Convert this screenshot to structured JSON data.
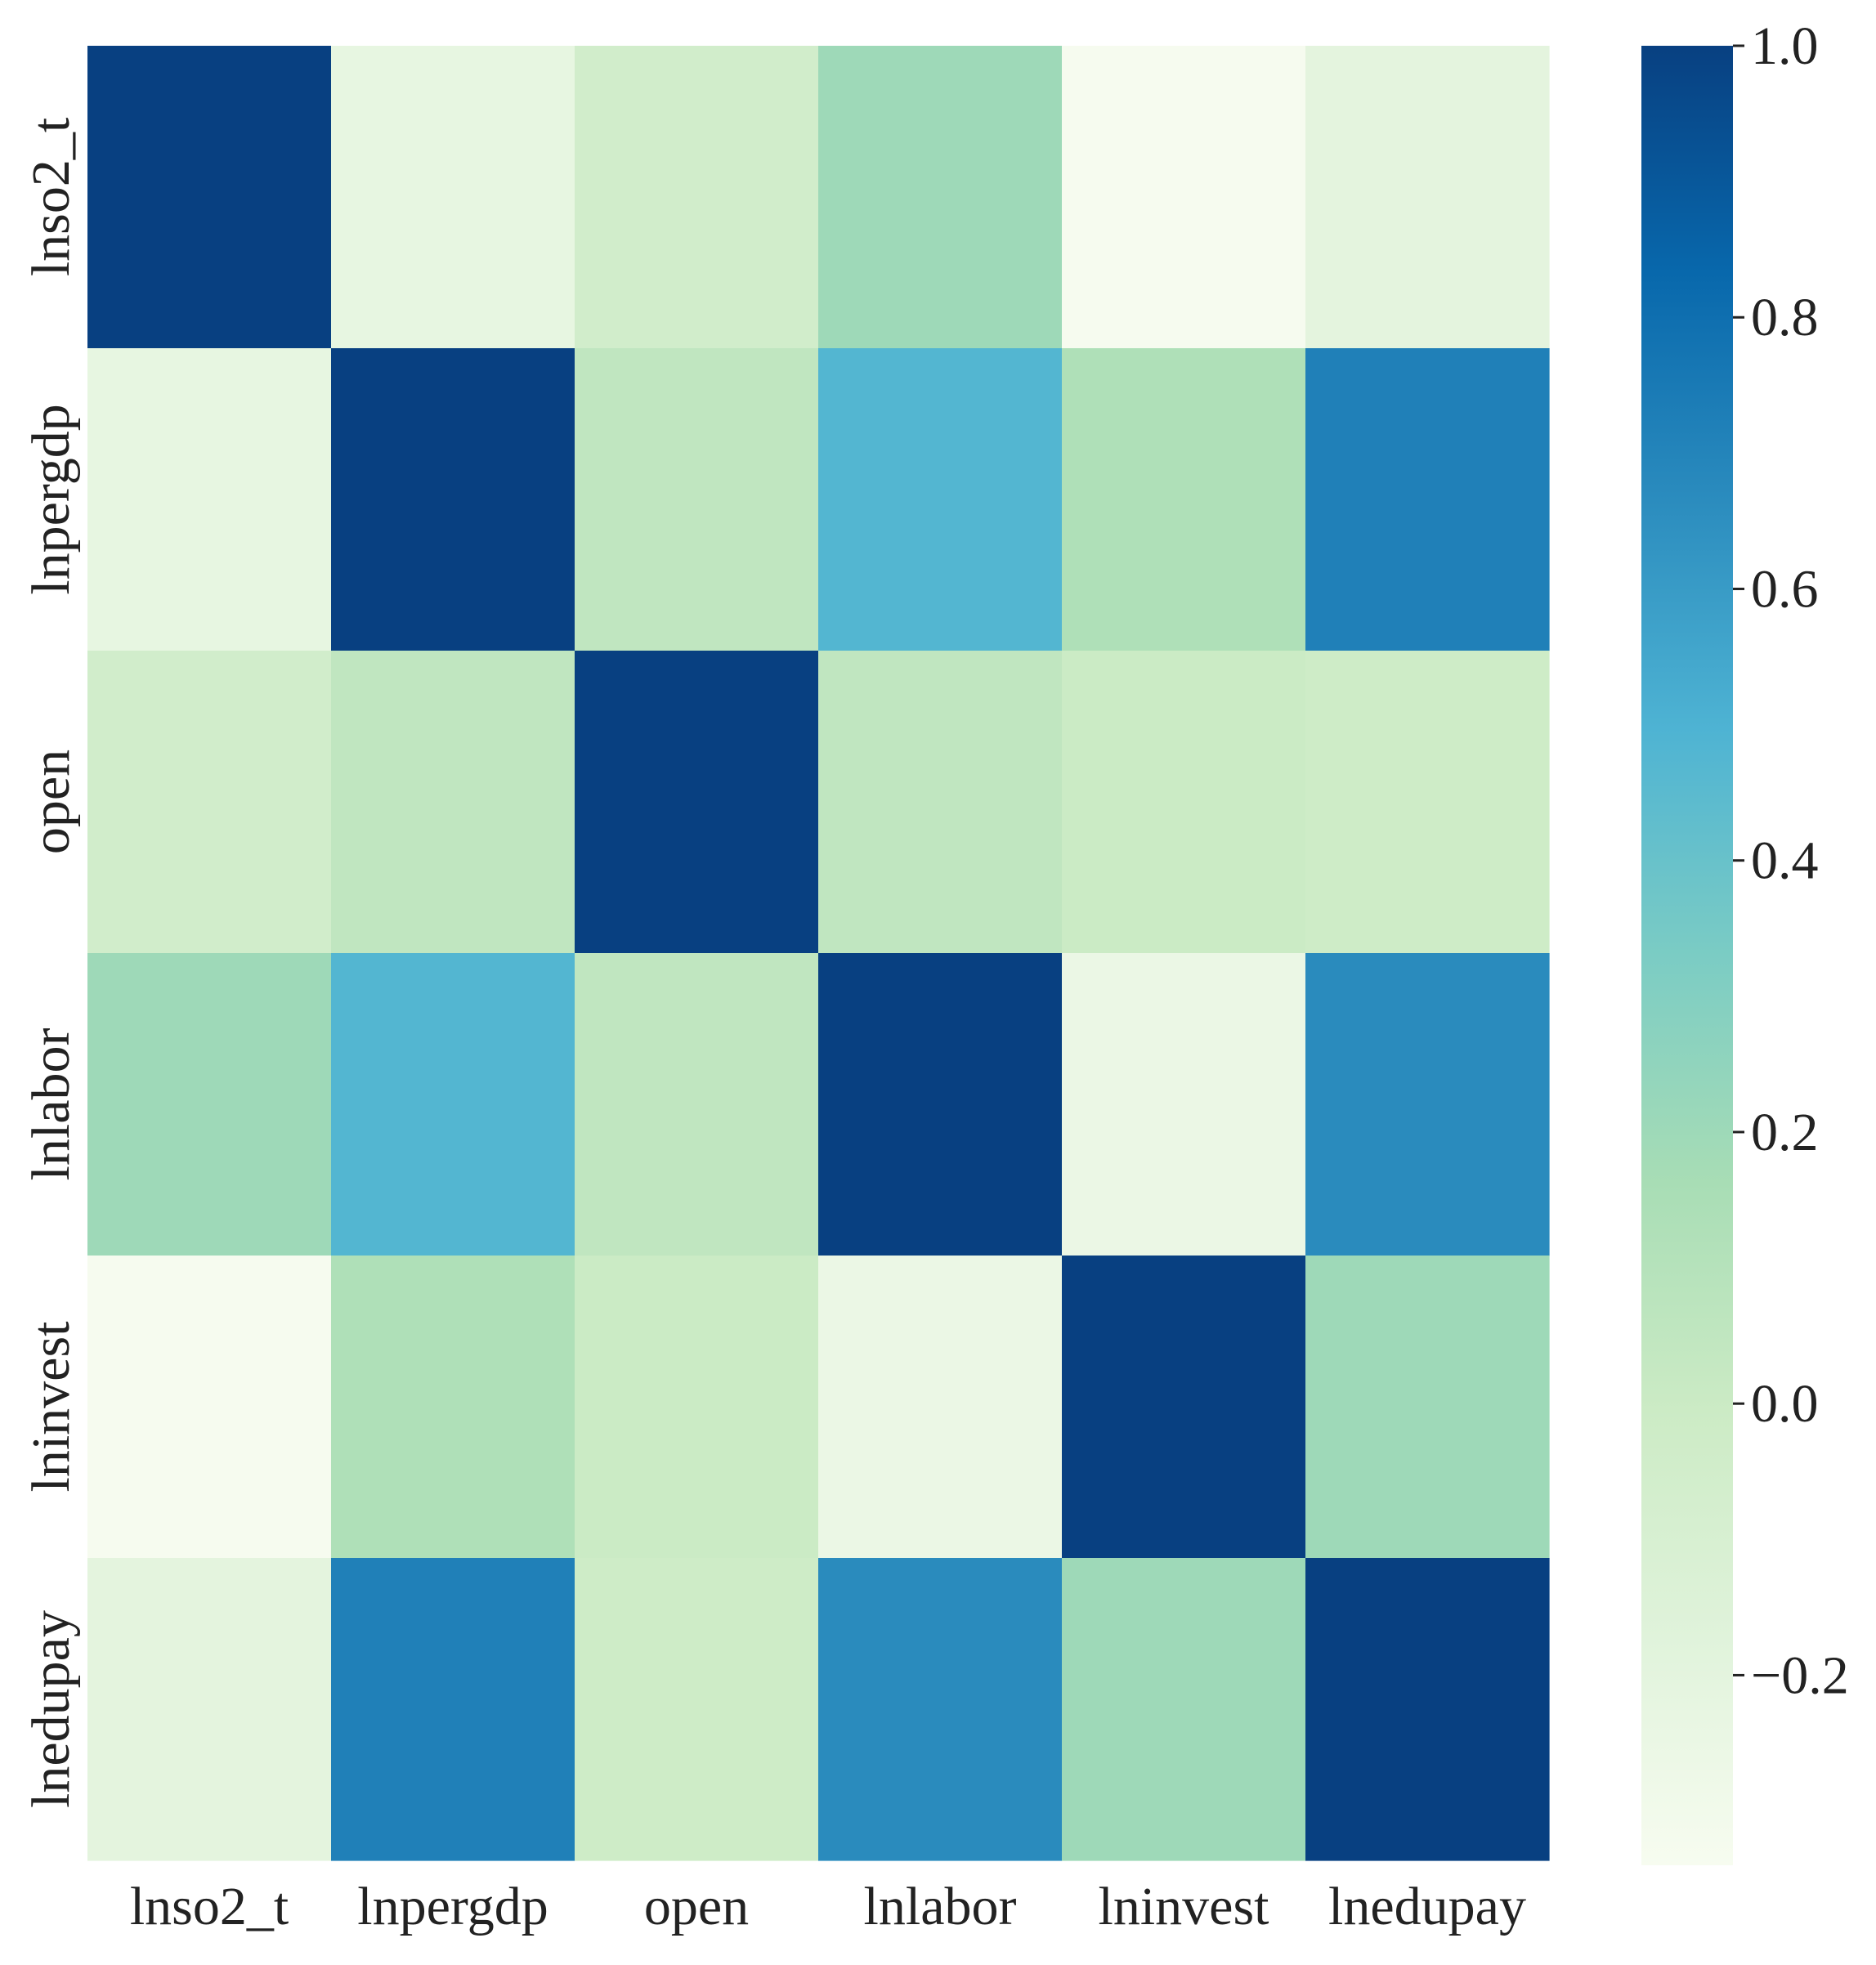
{
  "chart_data": {
    "type": "heatmap",
    "title": "",
    "xlabel": "",
    "ylabel": "",
    "row_labels": [
      "lnso2_t",
      "lnpergdp",
      "open",
      "lnlabor",
      "lninvest",
      "lnedupay"
    ],
    "col_labels": [
      "lnso2_t",
      "lnpergdp",
      "open",
      "lnlabor",
      "lninvest",
      "lnedupay"
    ],
    "values": [
      [
        1.0,
        -0.22,
        -0.05,
        0.2,
        -0.33,
        -0.2
      ],
      [
        -0.22,
        1.0,
        0.05,
        0.48,
        0.13,
        0.72
      ],
      [
        -0.05,
        0.05,
        1.0,
        0.05,
        0.0,
        -0.02
      ],
      [
        0.2,
        0.48,
        0.05,
        1.0,
        -0.25,
        0.67
      ],
      [
        -0.33,
        0.13,
        0.0,
        -0.25,
        1.0,
        0.2
      ],
      [
        -0.2,
        0.72,
        -0.02,
        0.67,
        0.2,
        1.0
      ]
    ],
    "colorbar": {
      "colormap": "GnBu",
      "range": [
        -0.34,
        1.0
      ],
      "ticks": [
        1.0,
        0.8,
        0.6,
        0.4,
        0.2,
        0.0,
        -0.2
      ],
      "tick_labels": [
        "1.0",
        "0.8",
        "0.6",
        "0.4",
        "0.2",
        "0.0",
        "−0.2"
      ],
      "colors": [
        "#f7fcf0",
        "#e0f3db",
        "#ccebc5",
        "#a8ddb5",
        "#7bccc4",
        "#4eb3d3",
        "#2b8cbe",
        "#0868ac",
        "#084081"
      ]
    }
  }
}
